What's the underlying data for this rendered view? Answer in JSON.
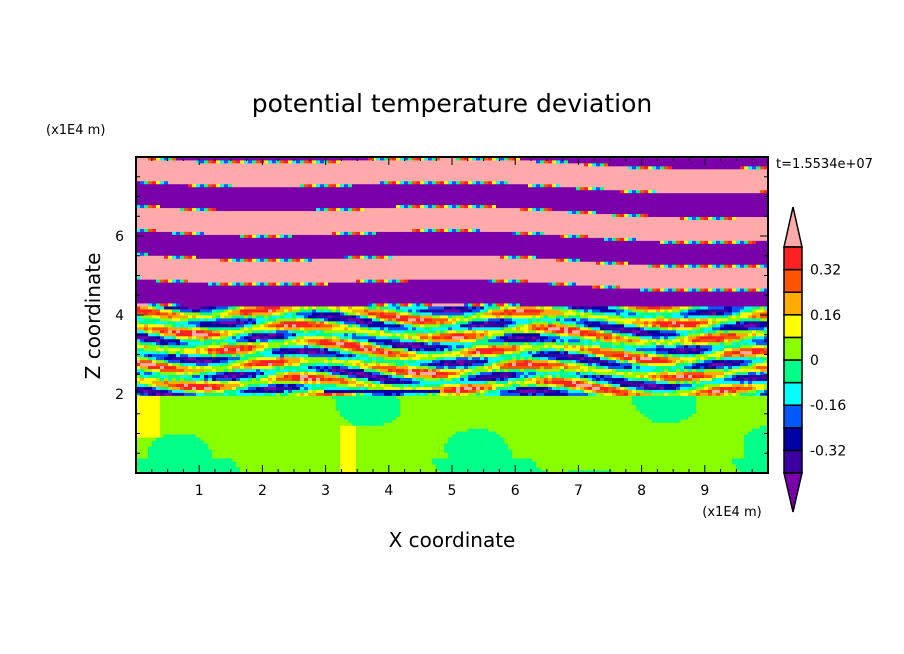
{
  "chart_data": {
    "type": "heatmap",
    "title": "potential temperature deviation",
    "xlabel": "X coordinate",
    "ylabel": "Z coordinate",
    "x_unit": "(x1E4 m)",
    "y_unit": "(x1E4 m)",
    "xlim": [
      0,
      10
    ],
    "ylim": [
      0,
      8
    ],
    "x_ticks": [
      "1",
      "2",
      "3",
      "4",
      "5",
      "6",
      "7",
      "8",
      "9"
    ],
    "x_tick_values": [
      1,
      2,
      3,
      4,
      5,
      6,
      7,
      8,
      9
    ],
    "y_ticks": [
      "2",
      "4",
      "6"
    ],
    "y_tick_values": [
      2,
      4,
      6
    ],
    "time_label": "t=1.5534e+07",
    "colorbar": {
      "levels": [
        -0.4,
        -0.32,
        -0.24,
        -0.16,
        -0.08,
        0,
        0.08,
        0.16,
        0.24,
        0.32,
        0.4
      ],
      "labels": [
        "0.32",
        "0.16",
        "0",
        "-0.16",
        "-0.32"
      ],
      "label_values": [
        0.32,
        0.16,
        0,
        -0.16,
        -0.32
      ],
      "colors": [
        "#7a00aa",
        "#3a00a0",
        "#0000a8",
        "#0058ff",
        "#00ffff",
        "#00ff88",
        "#88ff00",
        "#ffff00",
        "#ffaa00",
        "#ff5500",
        "#ff2222",
        "#ffaaaa"
      ],
      "extend": "both"
    },
    "field_description_regions": [
      {
        "z_range": [
          0,
          2
        ],
        "dominant_values": [
          0.0,
          0.08
        ]
      },
      {
        "z_range": [
          2,
          4
        ],
        "dominant_values": [
          -0.4,
          0.4
        ]
      },
      {
        "z_range": [
          4,
          8
        ],
        "dominant_values": [
          -0.4,
          0.4
        ]
      }
    ]
  }
}
